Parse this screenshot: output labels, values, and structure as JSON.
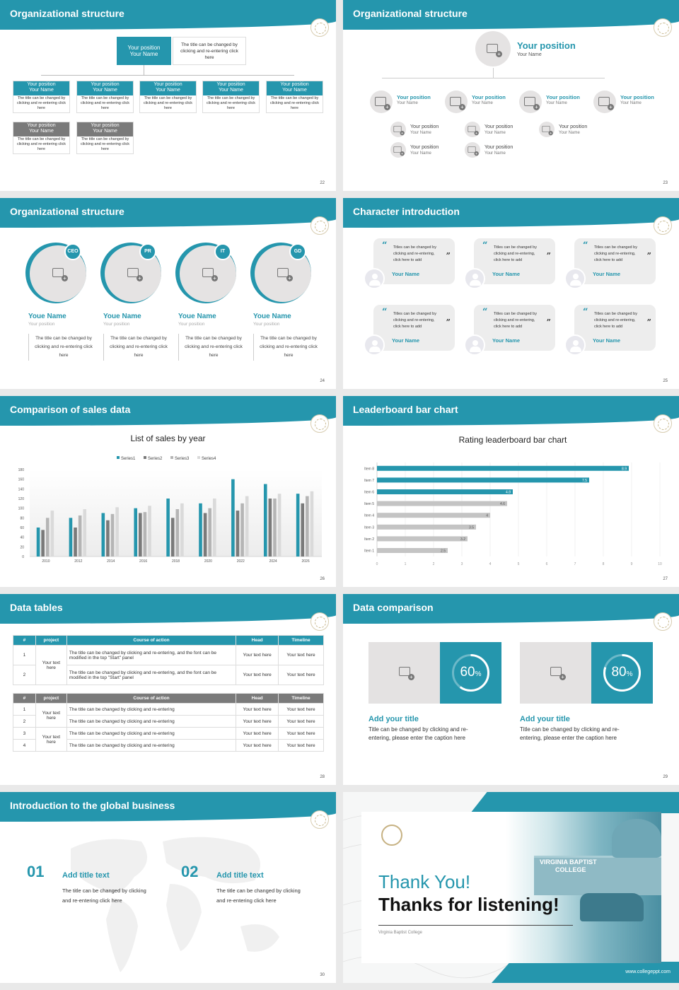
{
  "s1": {
    "title": "Organizational structure",
    "page": "22",
    "top_pos": "Your position",
    "top_name": "Your Name",
    "top_desc": "The title can be changed by clicking and re-entering click here",
    "boxes": [
      {
        "pos": "Your position",
        "name": "Your Name",
        "desc": "The title can be changed by clicking and re-entering click here"
      },
      {
        "pos": "Your position",
        "name": "Your Name",
        "desc": "The title can be changed by clicking and re-entering click here"
      },
      {
        "pos": "Your position",
        "name": "Your Name",
        "desc": "The title can be changed by clicking and re-entering click here"
      },
      {
        "pos": "Your position",
        "name": "Your Name",
        "desc": "The title can be changed by clicking and re-entering click here"
      },
      {
        "pos": "Your position",
        "name": "Your Name",
        "desc": "The title can be changed by clicking and re-entering click here"
      },
      {
        "pos": "Your position",
        "name": "Your Name",
        "desc": "The title can be changed by clicking and re-entering click here"
      },
      {
        "pos": "Your position",
        "name": "Your Name",
        "desc": "The title can be changed by clicking and re-entering click here"
      }
    ]
  },
  "s2": {
    "title": "Organizational structure",
    "page": "23",
    "top_pos": "Your position",
    "top_name": "Your Name",
    "items": [
      {
        "pos": "Your position",
        "name": "Your Name"
      },
      {
        "pos": "Your position",
        "name": "Your Name"
      },
      {
        "pos": "Your position",
        "name": "Your Name"
      },
      {
        "pos": "Your position",
        "name": "Your Name"
      },
      {
        "pos": "Your position",
        "name": "Your Name"
      },
      {
        "pos": "Your position",
        "name": "Your Name"
      },
      {
        "pos": "Your position",
        "name": "Your Name"
      },
      {
        "pos": "Your position",
        "name": "Your Name"
      },
      {
        "pos": "Your position",
        "name": "Your Name"
      }
    ]
  },
  "s3": {
    "title": "Organizational structure",
    "page": "24",
    "people": [
      {
        "badge": "CEO",
        "name": "Youe Name",
        "pos": "Your position",
        "desc": "The title can be changed by clicking and re-entering click here"
      },
      {
        "badge": "PR",
        "name": "Youe Name",
        "pos": "Your position",
        "desc": "The title can be changed by clicking and re-entering click here"
      },
      {
        "badge": "IT",
        "name": "Youe Name",
        "pos": "Your position",
        "desc": "The title can be changed by clicking and re-entering click here"
      },
      {
        "badge": "GD",
        "name": "Youe Name",
        "pos": "Your position",
        "desc": "The title can be changed by clicking and re-entering click here"
      }
    ]
  },
  "s4": {
    "title": "Character introduction",
    "page": "25",
    "cards": [
      {
        "text": "Titles can be changed by clicking and re-entering, click here to add",
        "name": "Your Name"
      },
      {
        "text": "Titles can be changed by clicking and re-entering, click here to add",
        "name": "Your Name"
      },
      {
        "text": "Titles can be changed by clicking and re-entering, click here to add",
        "name": "Your Name"
      },
      {
        "text": "Titles can be changed by clicking and re-entering, click here to add",
        "name": "Your Name"
      },
      {
        "text": "Titles can be changed by clicking and re-entering, click here to add",
        "name": "Your Name"
      },
      {
        "text": "Titles can be changed by clicking and re-entering, click here to add",
        "name": "Your Name"
      }
    ]
  },
  "s5": {
    "title": "Comparison of sales data",
    "page": "26"
  },
  "s6": {
    "title": "Leaderboard bar chart",
    "page": "27"
  },
  "chart_data": [
    {
      "type": "bar",
      "title": "List of sales by year",
      "categories": [
        "2010",
        "2012",
        "2014",
        "2016",
        "2018",
        "2020",
        "2022",
        "2024",
        "2026"
      ],
      "ylim": [
        0,
        180
      ],
      "yticks": [
        0,
        20,
        40,
        60,
        80,
        100,
        120,
        140,
        160,
        180
      ],
      "legend": "top",
      "series": [
        {
          "name": "Series1",
          "color": "#2596ad",
          "values": [
            60,
            80,
            90,
            100,
            120,
            110,
            160,
            150,
            130
          ]
        },
        {
          "name": "Series2",
          "color": "#7a7a7a",
          "values": [
            55,
            60,
            75,
            90,
            80,
            90,
            95,
            120,
            110
          ]
        },
        {
          "name": "Series3",
          "color": "#b5b5b5",
          "values": [
            80,
            85,
            88,
            92,
            98,
            100,
            110,
            120,
            125
          ]
        },
        {
          "name": "Series4",
          "color": "#dadada",
          "values": [
            95,
            98,
            102,
            105,
            110,
            120,
            125,
            130,
            135
          ]
        }
      ]
    },
    {
      "type": "bar",
      "orientation": "horizontal",
      "title": "Rating leaderboard bar chart",
      "categories": [
        "Item 8",
        "Item 7",
        "Item 6",
        "Item 5",
        "Item 4",
        "Item 3",
        "Item 2",
        "Item 1"
      ],
      "values": [
        8.9,
        7.5,
        4.8,
        4.6,
        4,
        3.5,
        3.2,
        2.5
      ],
      "colors": [
        "#2596ad",
        "#2596ad",
        "#2596ad",
        "#c4c4c4",
        "#c4c4c4",
        "#c4c4c4",
        "#c4c4c4",
        "#c4c4c4"
      ],
      "xlim": [
        0,
        10
      ],
      "xticks": [
        0,
        1,
        2,
        3,
        4,
        5,
        6,
        7,
        8,
        9,
        10
      ]
    }
  ],
  "s7": {
    "title": "Data tables",
    "page": "28",
    "t1_headers": [
      "#",
      "project",
      "Course of action",
      "Head",
      "Timeline"
    ],
    "t1_rows": [
      {
        "n": "1",
        "action": "The title can be changed by clicking and re-entering, and the font can be modified in the top \"Start\" panel",
        "head": "Your text here",
        "time": "Your text here"
      },
      {
        "n": "2",
        "action": "The title can be changed by clicking and re-entering, and the font can be modified in the top \"Start\" panel",
        "head": "Your text here",
        "time": "Your text here"
      }
    ],
    "t1_project": "Your text here",
    "t2_headers": [
      "#",
      "project",
      "Course of action",
      "Head",
      "Timeline"
    ],
    "t2_rows": [
      {
        "n": "1",
        "action": "The title can be changed by clicking and re-entering",
        "head": "Your text here",
        "time": "Your text here"
      },
      {
        "n": "2",
        "action": "The title can be changed by clicking and re-entering",
        "head": "Your text here",
        "time": "Your text here"
      },
      {
        "n": "3",
        "action": "The title can be changed by clicking and re-entering",
        "head": "Your text here",
        "time": "Your text here"
      },
      {
        "n": "4",
        "action": "The title can be changed by clicking and re-entering",
        "head": "Your text here",
        "time": "Your text here"
      }
    ],
    "t2_project_a": "Your text here",
    "t2_project_b": "Your text here"
  },
  "s8": {
    "title": "Data comparison",
    "page": "29",
    "items": [
      {
        "pct": "60",
        "pct_value": 60,
        "title": "Add your title",
        "desc": "Title can be changed by clicking and re-entering, please enter the caption here"
      },
      {
        "pct": "80",
        "pct_value": 80,
        "title": "Add your title",
        "desc": "Title can be changed by clicking and re-entering, please enter the caption here"
      }
    ]
  },
  "s9": {
    "title": "Introduction to the global business",
    "page": "30",
    "items": [
      {
        "num": "01",
        "title": "Add title text",
        "desc": "The title can be changed by clicking and re-entering click here"
      },
      {
        "num": "02",
        "title": "Add title text",
        "desc": "The title can be changed by clicking and re-entering click here"
      }
    ]
  },
  "s10": {
    "thank": "Thank You!",
    "thanks": "Thanks for listening!",
    "college": "Virginia Baptist College",
    "url": "www.collegeppt.com",
    "sign1": "VIRGINIA BAPTIST",
    "sign2": "COLLEGE"
  }
}
